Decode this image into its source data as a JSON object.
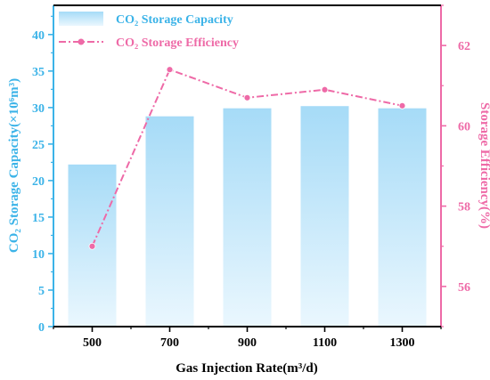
{
  "chart_data": {
    "type": "bar",
    "categories": [
      "500",
      "700",
      "900",
      "1100",
      "1300"
    ],
    "series": [
      {
        "name": "CO₂ Storage Capacity",
        "type": "bar",
        "axis": "left",
        "values": [
          22.2,
          28.8,
          29.9,
          30.2,
          29.9
        ]
      },
      {
        "name": "CO₂ Storage Efficiency",
        "type": "line",
        "axis": "right",
        "values": [
          57.0,
          61.4,
          60.7,
          60.9,
          60.5
        ]
      }
    ],
    "xlabel": "Gas Injection Rate(m³/d)",
    "ylabel_left": "CO₂ Storage Capacity(×10⁶m³)",
    "ylabel_right": "Storage Efficiency(%)",
    "ylim_left": [
      0,
      44
    ],
    "ylim_right": [
      55,
      63
    ],
    "yticks_left": [
      0,
      5,
      10,
      15,
      20,
      25,
      30,
      35,
      40
    ],
    "yticks_right": [
      56,
      58,
      60,
      62
    ],
    "legend_position": "top-left",
    "grid": false,
    "colors": {
      "bar_top": "#a6dbf7",
      "bar_bottom": "#eaf7fe",
      "left_axis": "#3bb3e8",
      "right_axis": "#ee6aa7",
      "line": "#ee6aa7",
      "bottom_axis": "#000000"
    }
  }
}
